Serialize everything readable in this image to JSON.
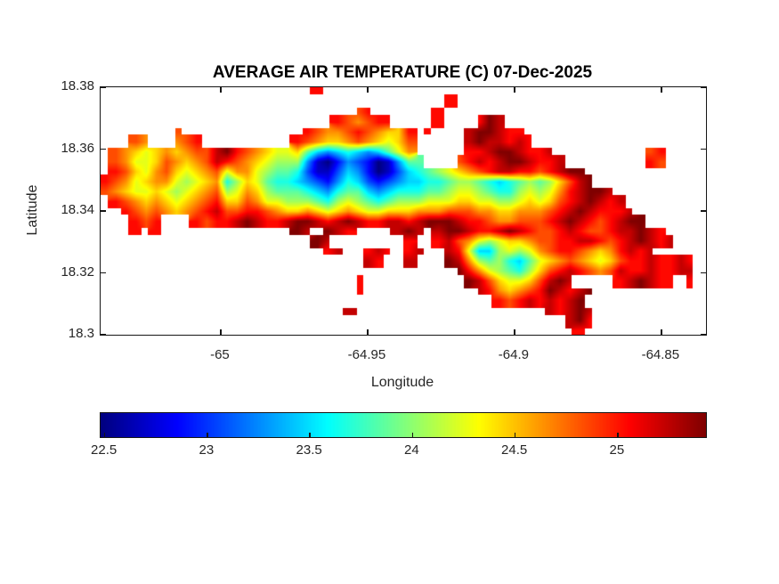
{
  "figure": {
    "background": "#ffffff",
    "text_color": "#262626",
    "axis_color": "#151515"
  },
  "chart_data": {
    "type": "heatmap",
    "title": "AVERAGE AIR TEMPERATURE (C) 07-Dec-2025",
    "xlabel": "Longitude",
    "ylabel": "Latitude",
    "units": "C",
    "xlim": [
      -65.0409,
      -64.8348
    ],
    "ylim": [
      18.3,
      18.38
    ],
    "x_ticks": [
      {
        "value": -65,
        "label": "-65"
      },
      {
        "value": -64.95,
        "label": "-64.95"
      },
      {
        "value": -64.9,
        "label": "-64.9"
      },
      {
        "value": -64.85,
        "label": "-64.85"
      }
    ],
    "y_ticks": [
      {
        "value": 18.38,
        "label": "18.38"
      },
      {
        "value": 18.36,
        "label": "18.36"
      },
      {
        "value": 18.34,
        "label": "18.34"
      },
      {
        "value": 18.32,
        "label": "18.32"
      },
      {
        "value": 18.3,
        "label": "18.3"
      }
    ],
    "colormap": "jet",
    "color_range": [
      22.48,
      25.43
    ],
    "colorbar_orientation": "horizontal",
    "colorbar_ticks": [
      {
        "value": 22.5,
        "label": "22.5"
      },
      {
        "value": 23,
        "label": "23"
      },
      {
        "value": 23.5,
        "label": "23.5"
      },
      {
        "value": 24,
        "label": "24"
      },
      {
        "value": 24.5,
        "label": "24.5"
      },
      {
        "value": 25,
        "label": "25"
      }
    ],
    "grid_cols": 60,
    "grid_encoding": {
      "water_char": ".",
      "chars": "0123456789abcdef",
      "min_temp": 22.48,
      "max_temp": 25.43
    },
    "grid_rows": [
      ".....................d......................................",
      "..................................d.........................",
      ".........................cd......d..........................",
      ".......................dcbcdd....d...dfe....................",
      ".......c............dcbbcdcbaad.d...effedd..................",
      "...cb..bcd.........dcbaabcba9ac.....efeeded.................",
      ".cba9ababccefdcba99a7545654579b.....ddeffedde.........cd....",
      ".cb99acbabcedcba9888410243201477...cdedeffedde........dc....",
      ".dca9bca9abc9bb98776311354201356789abcdeeddcdeff............",
      "dcb9abb989ab68a976654324653234556678876567878acef...........",
      "cba99a989abc89ba87776546775456667789987668989bdeffe.........",
      ".dcbaba9abcdaacb9988876898767888999aa99889a9acdefede........",
      "..dcbcbabcdeccddcbaaba9aba99aaabbbcccbbaabbbcdefeddde.......",
      "...dcd...dcddefeddeffedefeddeedefffeddcbbcccdefedcdeff......",
      "...d.d.............fe.fed....efe.effeddefedccdedccdeefed....",
      ".....................fe.......d..decb989aabccddeedcdefede...",
      "......................de..ded.de..ed9558989bcddcbabdede.....",
      "..........................ed..e...feb8786579abcba9acddedded.",
      "...................................fdb98768acdedcbceddeddee.",
      ".........................d..........feca99acefe....defedd.d.",
      ".........................d...........edbabcdfedef...........",
      ".......................................dcdededef............",
      "........................e...................edefe...........",
      "..............................................efd...........",
      "...............................................d............"
    ]
  }
}
